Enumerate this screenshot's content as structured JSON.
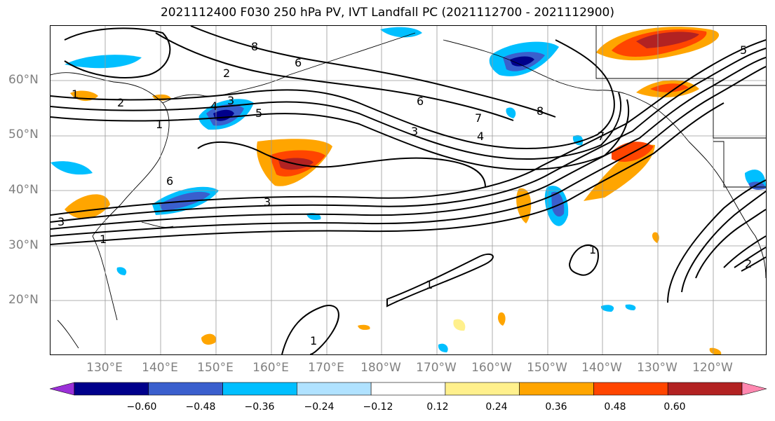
{
  "title": "2021112400 F030 250 hPa PV, IVT Landfall PC (2021112700 - 2021112900)",
  "lat_labels": [
    "60°N",
    "50°N",
    "40°N",
    "30°N",
    "20°N"
  ],
  "lon_labels": [
    "130°E",
    "140°E",
    "150°E",
    "160°E",
    "170°E",
    "180°W",
    "170°W",
    "160°W",
    "150°W",
    "140°W",
    "130°W",
    "120°W"
  ],
  "colorbar": {
    "ticks": [
      "−0.60",
      "−0.48",
      "−0.36",
      "−0.24",
      "−0.12",
      "0.12",
      "0.24",
      "0.36",
      "0.48",
      "0.60"
    ],
    "colors": [
      "#9b30d8",
      "#00008b",
      "#3a5fcd",
      "#00bfff",
      "#b0e2ff",
      "#ffffff",
      "#fff08c",
      "#ffa500",
      "#ff4500",
      "#b22222",
      "#ff88b0"
    ]
  },
  "contour_labels": [
    "1",
    "2",
    "3",
    "4",
    "5",
    "6",
    "7",
    "8"
  ],
  "shading_colors": {
    "dark_red": "#b22222",
    "red": "#ff4500",
    "orange": "#ffa500",
    "yellow": "#fff08c",
    "light_blue": "#00bfff",
    "blue": "#3a5fcd",
    "dark_blue": "#00008b"
  }
}
